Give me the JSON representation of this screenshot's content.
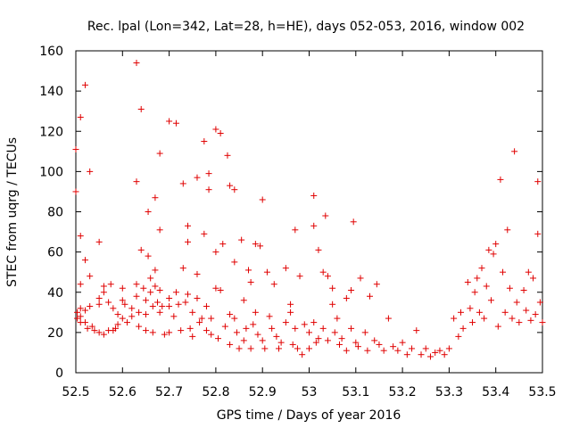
{
  "chart_data": {
    "type": "scatter",
    "title": "Rec. lpal (Lon=342, Lat=28, h=HE), days 052-053, 2016, window 002",
    "xlabel": "GPS time / Days of year 2016",
    "ylabel": "STEC from uqrg / TECUs",
    "xlim": [
      52.5,
      53.5
    ],
    "ylim": [
      0,
      160
    ],
    "xticks": [
      "52.5",
      "52.6",
      "52.7",
      "52.8",
      "52.9",
      "53",
      "53.1",
      "53.2",
      "53.3",
      "53.4",
      "53.5"
    ],
    "yticks": [
      "0",
      "20",
      "40",
      "60",
      "80",
      "100",
      "120",
      "140",
      "160"
    ],
    "marker": "plus",
    "color": "#e00000",
    "points": [
      [
        52.5,
        111
      ],
      [
        52.5,
        90
      ],
      [
        52.503,
        30
      ],
      [
        52.503,
        27
      ],
      [
        52.51,
        127
      ],
      [
        52.51,
        68
      ],
      [
        52.51,
        44
      ],
      [
        52.51,
        32
      ],
      [
        52.51,
        28
      ],
      [
        52.51,
        25
      ],
      [
        52.52,
        143
      ],
      [
        52.52,
        56
      ],
      [
        52.52,
        31
      ],
      [
        52.52,
        25
      ],
      [
        52.525,
        22
      ],
      [
        52.53,
        100
      ],
      [
        52.53,
        48
      ],
      [
        52.53,
        33
      ],
      [
        52.535,
        23
      ],
      [
        52.54,
        21
      ],
      [
        52.55,
        65
      ],
      [
        52.55,
        37
      ],
      [
        52.55,
        34
      ],
      [
        52.55,
        20
      ],
      [
        52.56,
        43
      ],
      [
        52.56,
        40
      ],
      [
        52.56,
        19
      ],
      [
        52.57,
        35
      ],
      [
        52.57,
        21
      ],
      [
        52.575,
        44
      ],
      [
        52.58,
        32
      ],
      [
        52.58,
        21
      ],
      [
        52.585,
        22
      ],
      [
        52.59,
        29
      ],
      [
        52.59,
        24
      ],
      [
        52.6,
        42
      ],
      [
        52.6,
        36
      ],
      [
        52.6,
        27
      ],
      [
        52.605,
        34
      ],
      [
        52.61,
        25
      ],
      [
        52.62,
        32
      ],
      [
        52.62,
        28
      ],
      [
        52.63,
        154
      ],
      [
        52.63,
        95
      ],
      [
        52.63,
        44
      ],
      [
        52.63,
        38
      ],
      [
        52.635,
        30
      ],
      [
        52.635,
        23
      ],
      [
        52.64,
        131
      ],
      [
        52.64,
        61
      ],
      [
        52.645,
        42
      ],
      [
        52.65,
        36
      ],
      [
        52.65,
        29
      ],
      [
        52.65,
        21
      ],
      [
        52.655,
        80
      ],
      [
        52.655,
        58
      ],
      [
        52.66,
        47
      ],
      [
        52.66,
        40
      ],
      [
        52.665,
        33
      ],
      [
        52.665,
        20
      ],
      [
        52.67,
        87
      ],
      [
        52.67,
        51
      ],
      [
        52.67,
        43
      ],
      [
        52.675,
        35
      ],
      [
        52.68,
        109
      ],
      [
        52.68,
        71
      ],
      [
        52.68,
        41
      ],
      [
        52.68,
        30
      ],
      [
        52.685,
        33
      ],
      [
        52.69,
        19
      ],
      [
        52.7,
        125
      ],
      [
        52.7,
        37
      ],
      [
        52.7,
        33
      ],
      [
        52.7,
        20
      ],
      [
        52.71,
        28
      ],
      [
        52.715,
        124
      ],
      [
        52.715,
        40
      ],
      [
        52.72,
        34
      ],
      [
        52.725,
        21
      ],
      [
        52.73,
        94
      ],
      [
        52.73,
        52
      ],
      [
        52.735,
        35
      ],
      [
        52.74,
        73
      ],
      [
        52.74,
        65
      ],
      [
        52.74,
        39
      ],
      [
        52.745,
        22
      ],
      [
        52.75,
        30
      ],
      [
        52.75,
        18
      ],
      [
        52.76,
        97
      ],
      [
        52.76,
        49
      ],
      [
        52.76,
        37
      ],
      [
        52.765,
        25
      ],
      [
        52.77,
        27
      ],
      [
        52.775,
        115
      ],
      [
        52.775,
        69
      ],
      [
        52.78,
        33
      ],
      [
        52.78,
        21
      ],
      [
        52.785,
        99
      ],
      [
        52.785,
        91
      ],
      [
        52.79,
        27
      ],
      [
        52.79,
        19
      ],
      [
        52.8,
        121
      ],
      [
        52.8,
        60
      ],
      [
        52.8,
        42
      ],
      [
        52.805,
        17
      ],
      [
        52.81,
        119
      ],
      [
        52.81,
        41
      ],
      [
        52.815,
        64
      ],
      [
        52.82,
        23
      ],
      [
        52.825,
        108
      ],
      [
        52.83,
        93
      ],
      [
        52.83,
        29
      ],
      [
        52.83,
        14
      ],
      [
        52.84,
        91
      ],
      [
        52.84,
        55
      ],
      [
        52.84,
        27
      ],
      [
        52.845,
        20
      ],
      [
        52.85,
        12
      ],
      [
        52.855,
        66
      ],
      [
        52.86,
        36
      ],
      [
        52.86,
        16
      ],
      [
        52.865,
        22
      ],
      [
        52.87,
        51
      ],
      [
        52.875,
        45
      ],
      [
        52.875,
        12
      ],
      [
        52.88,
        24
      ],
      [
        52.885,
        64
      ],
      [
        52.885,
        30
      ],
      [
        52.89,
        19
      ],
      [
        52.895,
        63
      ],
      [
        52.9,
        86
      ],
      [
        52.9,
        16
      ],
      [
        52.905,
        12
      ],
      [
        52.91,
        50
      ],
      [
        52.915,
        28
      ],
      [
        52.92,
        22
      ],
      [
        52.925,
        44
      ],
      [
        52.93,
        18
      ],
      [
        52.935,
        12
      ],
      [
        52.94,
        15
      ],
      [
        52.95,
        52
      ],
      [
        52.95,
        25
      ],
      [
        52.96,
        34
      ],
      [
        52.96,
        30
      ],
      [
        52.965,
        14
      ],
      [
        52.97,
        71
      ],
      [
        52.97,
        22
      ],
      [
        52.975,
        12
      ],
      [
        52.98,
        48
      ],
      [
        52.985,
        9
      ],
      [
        52.99,
        24
      ],
      [
        53,
        12
      ],
      [
        53,
        20
      ],
      [
        53.01,
        88
      ],
      [
        53.01,
        73
      ],
      [
        53.01,
        25
      ],
      [
        53.015,
        15
      ],
      [
        53.02,
        61
      ],
      [
        53.02,
        17
      ],
      [
        53.03,
        50
      ],
      [
        53.03,
        22
      ],
      [
        53.035,
        78
      ],
      [
        53.04,
        48
      ],
      [
        53.04,
        16
      ],
      [
        53.05,
        42
      ],
      [
        53.05,
        34
      ],
      [
        53.055,
        20
      ],
      [
        53.06,
        27
      ],
      [
        53.065,
        14
      ],
      [
        53.07,
        17
      ],
      [
        53.08,
        37
      ],
      [
        53.08,
        11
      ],
      [
        53.09,
        41
      ],
      [
        53.09,
        22
      ],
      [
        53.095,
        75
      ],
      [
        53.1,
        15
      ],
      [
        53.105,
        13
      ],
      [
        53.11,
        47
      ],
      [
        53.12,
        20
      ],
      [
        53.125,
        11
      ],
      [
        53.13,
        38
      ],
      [
        53.14,
        16
      ],
      [
        53.145,
        44
      ],
      [
        53.15,
        14
      ],
      [
        53.16,
        11
      ],
      [
        53.17,
        27
      ],
      [
        53.18,
        13
      ],
      [
        53.19,
        11
      ],
      [
        53.2,
        15
      ],
      [
        53.21,
        9
      ],
      [
        53.22,
        12
      ],
      [
        53.23,
        21
      ],
      [
        53.24,
        9
      ],
      [
        53.25,
        12
      ],
      [
        53.26,
        8
      ],
      [
        53.27,
        10
      ],
      [
        53.28,
        11
      ],
      [
        53.29,
        9
      ],
      [
        53.3,
        12
      ],
      [
        53.31,
        27
      ],
      [
        53.32,
        18
      ],
      [
        53.325,
        30
      ],
      [
        53.33,
        22
      ],
      [
        53.34,
        45
      ],
      [
        53.345,
        32
      ],
      [
        53.35,
        25
      ],
      [
        53.355,
        40
      ],
      [
        53.36,
        47
      ],
      [
        53.365,
        30
      ],
      [
        53.37,
        52
      ],
      [
        53.375,
        27
      ],
      [
        53.38,
        43
      ],
      [
        53.385,
        61
      ],
      [
        53.39,
        36
      ],
      [
        53.395,
        59
      ],
      [
        53.4,
        64
      ],
      [
        53.405,
        23
      ],
      [
        53.41,
        96
      ],
      [
        53.415,
        50
      ],
      [
        53.42,
        30
      ],
      [
        53.425,
        71
      ],
      [
        53.43,
        42
      ],
      [
        53.435,
        27
      ],
      [
        53.44,
        110
      ],
      [
        53.445,
        35
      ],
      [
        53.45,
        25
      ],
      [
        53.46,
        41
      ],
      [
        53.465,
        31
      ],
      [
        53.47,
        50
      ],
      [
        53.475,
        26
      ],
      [
        53.48,
        47
      ],
      [
        53.485,
        29
      ],
      [
        53.49,
        95
      ],
      [
        53.49,
        69
      ],
      [
        53.495,
        35
      ],
      [
        53.5,
        25
      ]
    ]
  }
}
